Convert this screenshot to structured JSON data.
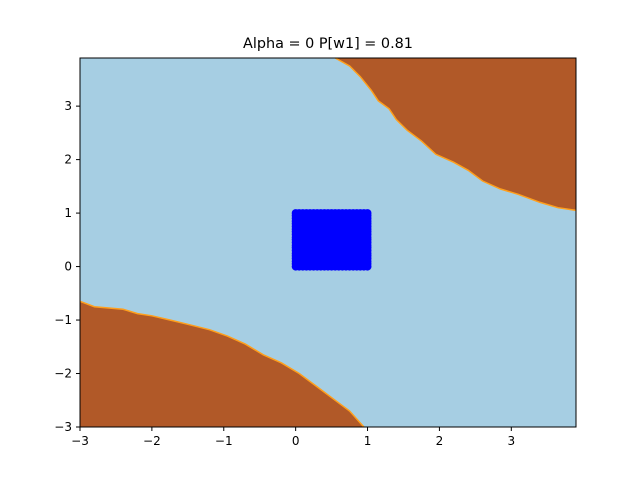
{
  "chart_data": {
    "type": "contourf",
    "title": "Alpha = 0 P[w1] = 0.81",
    "xlabel": "",
    "ylabel": "",
    "xlim": [
      -3,
      3.9
    ],
    "ylim": [
      -3,
      3.9
    ],
    "xticks": [
      -3,
      -2,
      -1,
      0,
      1,
      2,
      3
    ],
    "yticks": [
      -3,
      -2,
      -1,
      0,
      1,
      2,
      3
    ],
    "xtick_labels": [
      "−3",
      "−2",
      "−1",
      "0",
      "1",
      "2",
      "3"
    ],
    "ytick_labels": [
      "−3",
      "−2",
      "−1",
      "0",
      "1",
      "2",
      "3"
    ],
    "grid": false,
    "colors": {
      "background_region": "#a6cee3",
      "class_region": "#b15928",
      "boundary": "#ff9f1c",
      "points": "#0000ff",
      "spine": "#000000"
    },
    "regions": [
      {
        "class": "w2",
        "boundary": [
          [
            0.55,
            3.9
          ],
          [
            0.75,
            3.75
          ],
          [
            0.9,
            3.55
          ],
          [
            1.05,
            3.3
          ],
          [
            1.15,
            3.1
          ],
          [
            1.3,
            2.95
          ],
          [
            1.4,
            2.75
          ],
          [
            1.55,
            2.55
          ],
          [
            1.75,
            2.35
          ],
          [
            1.95,
            2.1
          ],
          [
            2.2,
            1.95
          ],
          [
            2.4,
            1.8
          ],
          [
            2.6,
            1.6
          ],
          [
            2.85,
            1.45
          ],
          [
            3.1,
            1.35
          ],
          [
            3.4,
            1.2
          ],
          [
            3.65,
            1.1
          ],
          [
            3.9,
            1.05
          ]
        ]
      },
      {
        "class": "w2",
        "boundary": [
          [
            -3,
            -0.65
          ],
          [
            -2.8,
            -0.75
          ],
          [
            -2.4,
            -0.8
          ],
          [
            -2.2,
            -0.88
          ],
          [
            -2.0,
            -0.92
          ],
          [
            -1.75,
            -1.0
          ],
          [
            -1.5,
            -1.08
          ],
          [
            -1.2,
            -1.18
          ],
          [
            -0.95,
            -1.3
          ],
          [
            -0.7,
            -1.45
          ],
          [
            -0.45,
            -1.65
          ],
          [
            -0.2,
            -1.8
          ],
          [
            0.05,
            -2.0
          ],
          [
            0.3,
            -2.25
          ],
          [
            0.55,
            -2.5
          ],
          [
            0.75,
            -2.7
          ],
          [
            0.95,
            -3.0
          ]
        ]
      }
    ],
    "series": [
      {
        "x_range": [
          0,
          1
        ],
        "y_range": [
          0,
          1
        ],
        "grid_step": 0.05
      }
    ]
  }
}
